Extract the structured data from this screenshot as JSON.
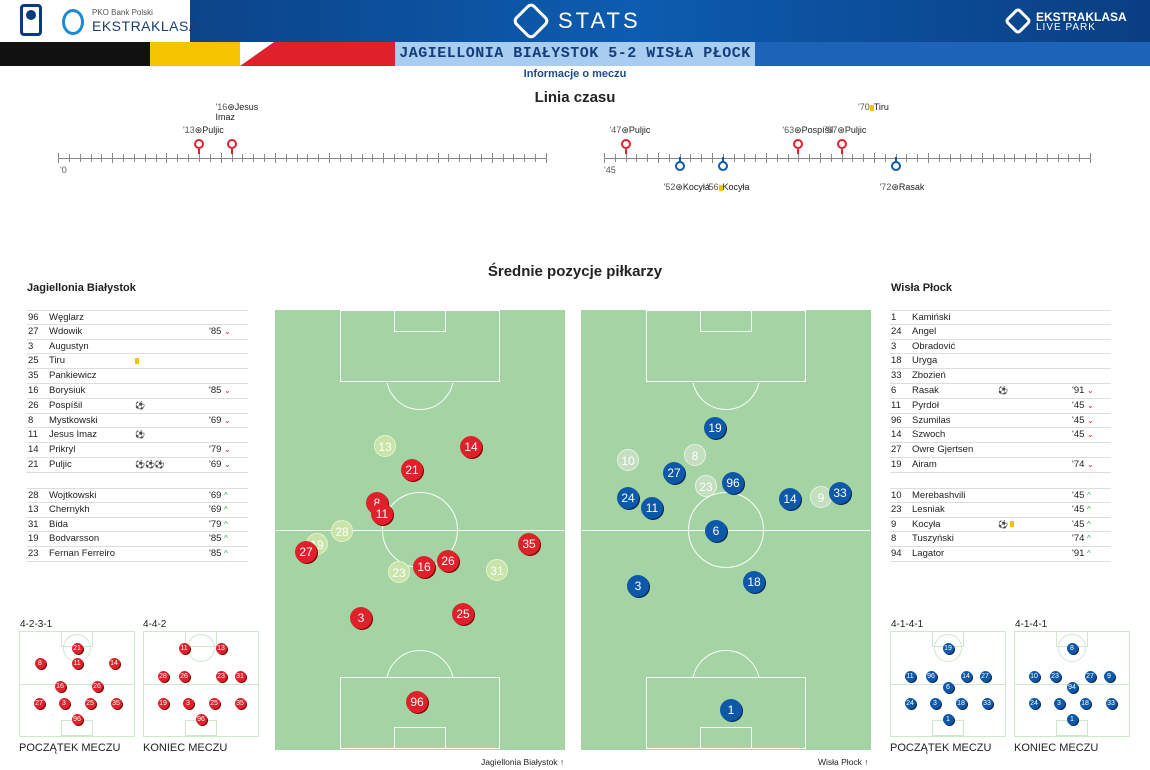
{
  "header": {
    "bank_small": "PKO Bank Polski",
    "brand": "EKSTRAKLASA",
    "stats": "STATS",
    "live1": "EKSTRAKLASA",
    "live2": "LIVE PARK"
  },
  "match": {
    "title": "JAGIELLONIA BIAŁYSTOK 5-2 WISŁA PŁOCK",
    "info": "Informacje o meczu"
  },
  "timeline": {
    "title": "Linia czasu",
    "start1": "'0",
    "start2": "'45",
    "events": [
      {
        "minute": "'13",
        "name": "Puljic",
        "team": "home",
        "type": "goal"
      },
      {
        "minute": "'16",
        "name": "Jesus Imaz",
        "team": "home",
        "type": "goal"
      },
      {
        "minute": "'47",
        "name": "Puljic",
        "team": "home",
        "type": "goal"
      },
      {
        "minute": "'52",
        "name": "Kocyła",
        "team": "away",
        "type": "goal"
      },
      {
        "minute": "'56",
        "name": "Kocyła",
        "team": "away",
        "type": "yellow"
      },
      {
        "minute": "'63",
        "name": "Pospíšil",
        "team": "home",
        "type": "goal"
      },
      {
        "minute": "'67",
        "name": "Puljic",
        "team": "home",
        "type": "goal"
      },
      {
        "minute": "'70",
        "name": "Tiru",
        "team": "home",
        "type": "yellow"
      },
      {
        "minute": "'72",
        "name": "Rasak",
        "team": "away",
        "type": "goal"
      }
    ]
  },
  "positions_title": "Średnie pozycje piłkarzy",
  "home": {
    "name": "Jagiellonia Białystok",
    "color": "#e0202a",
    "starters": [
      {
        "no": "96",
        "name": "Węglarz",
        "ev": "",
        "time": "",
        "dir": ""
      },
      {
        "no": "27",
        "name": "Wdowik",
        "ev": "",
        "time": "'85",
        "dir": "down"
      },
      {
        "no": "3",
        "name": "Augustyn",
        "ev": "",
        "time": "",
        "dir": ""
      },
      {
        "no": "25",
        "name": "Tiru",
        "ev": "yellow",
        "time": "",
        "dir": ""
      },
      {
        "no": "35",
        "name": "Pankiewicz",
        "ev": "",
        "time": "",
        "dir": ""
      },
      {
        "no": "16",
        "name": "Borysiuk",
        "ev": "",
        "time": "'85",
        "dir": "down"
      },
      {
        "no": "26",
        "name": "Pospíšil",
        "ev": "⚽",
        "time": "",
        "dir": ""
      },
      {
        "no": "8",
        "name": "Mystkowski",
        "ev": "",
        "time": "'69",
        "dir": "down"
      },
      {
        "no": "11",
        "name": "Jesus Imaz",
        "ev": "⚽",
        "time": "",
        "dir": ""
      },
      {
        "no": "14",
        "name": "Prikryl",
        "ev": "",
        "time": "'79",
        "dir": "down"
      },
      {
        "no": "21",
        "name": "Puljic",
        "ev": "⚽⚽⚽",
        "time": "'69",
        "dir": "down"
      }
    ],
    "subs": [
      {
        "no": "28",
        "name": "Wojtkowski",
        "ev": "",
        "time": "'69",
        "dir": "up"
      },
      {
        "no": "13",
        "name": "Chernykh",
        "ev": "",
        "time": "'69",
        "dir": "up"
      },
      {
        "no": "31",
        "name": "Bida",
        "ev": "",
        "time": "'79",
        "dir": "up"
      },
      {
        "no": "19",
        "name": "Bodvarsson",
        "ev": "",
        "time": "'85",
        "dir": "up"
      },
      {
        "no": "23",
        "name": "Fernan Ferreiro",
        "ev": "",
        "time": "'85",
        "dir": "up"
      }
    ],
    "formation_start": "4-2-3-1",
    "formation_end": "4-4-2",
    "cap_start": "POCZĄTEK MECZU",
    "cap_end": "KONIEC MECZU"
  },
  "away": {
    "name": "Wisła Płock",
    "color": "#0d58a8",
    "starters": [
      {
        "no": "1",
        "name": "Kamiński",
        "ev": "",
        "time": "",
        "dir": ""
      },
      {
        "no": "24",
        "name": "Angel",
        "ev": "",
        "time": "",
        "dir": ""
      },
      {
        "no": "3",
        "name": "Obradović",
        "ev": "",
        "time": "",
        "dir": ""
      },
      {
        "no": "18",
        "name": "Uryga",
        "ev": "",
        "time": "",
        "dir": ""
      },
      {
        "no": "33",
        "name": "Zbozień",
        "ev": "",
        "time": "",
        "dir": ""
      },
      {
        "no": "6",
        "name": "Rasak",
        "ev": "⚽",
        "time": "'91",
        "dir": "down"
      },
      {
        "no": "11",
        "name": "Pyrdoł",
        "ev": "",
        "time": "'45",
        "dir": "down"
      },
      {
        "no": "96",
        "name": "Szumilas",
        "ev": "",
        "time": "'45",
        "dir": "down"
      },
      {
        "no": "14",
        "name": "Szwoch",
        "ev": "",
        "time": "'45",
        "dir": "down"
      },
      {
        "no": "27",
        "name": "Owre Gjertsen",
        "ev": "",
        "time": "",
        "dir": ""
      },
      {
        "no": "19",
        "name": "Airam",
        "ev": "",
        "time": "'74",
        "dir": "down"
      }
    ],
    "subs": [
      {
        "no": "10",
        "name": "Merebashvili",
        "ev": "",
        "time": "'45",
        "dir": "up"
      },
      {
        "no": "23",
        "name": "Lesniak",
        "ev": "",
        "time": "'45",
        "dir": "up"
      },
      {
        "no": "9",
        "name": "Kocyła",
        "ev": "⚽ yellow",
        "time": "'45",
        "dir": "up"
      },
      {
        "no": "8",
        "name": "Tuszyński",
        "ev": "",
        "time": "'74",
        "dir": "up"
      },
      {
        "no": "94",
        "name": "Lagator",
        "ev": "",
        "time": "'91",
        "dir": "up"
      }
    ],
    "formation_start": "4-1-4-1",
    "formation_end": "4-1-4-1",
    "cap_start": "POCZĄTEK MECZU",
    "cap_end": "KONIEC MECZU"
  },
  "home_positions": [
    {
      "no": "13",
      "sub": true
    },
    {
      "no": "14"
    },
    {
      "no": "21"
    },
    {
      "no": "8"
    },
    {
      "no": "11"
    },
    {
      "no": "28",
      "sub": true
    },
    {
      "no": "19",
      "sub": true
    },
    {
      "no": "27"
    },
    {
      "no": "35"
    },
    {
      "no": "26"
    },
    {
      "no": "16"
    },
    {
      "no": "23",
      "sub": true
    },
    {
      "no": "31",
      "sub": true
    },
    {
      "no": "3"
    },
    {
      "no": "25"
    },
    {
      "no": "96"
    }
  ],
  "away_positions": [
    {
      "no": "19"
    },
    {
      "no": "10",
      "sub": true
    },
    {
      "no": "8",
      "sub": true
    },
    {
      "no": "27"
    },
    {
      "no": "23",
      "sub": true
    },
    {
      "no": "96"
    },
    {
      "no": "24"
    },
    {
      "no": "11"
    },
    {
      "no": "14"
    },
    {
      "no": "9",
      "sub": true
    },
    {
      "no": "33"
    },
    {
      "no": "6"
    },
    {
      "no": "3"
    },
    {
      "no": "18"
    },
    {
      "no": "1"
    }
  ],
  "home_mini_start": [
    "21",
    "8",
    "11",
    "14",
    "16",
    "26",
    "27",
    "3",
    "25",
    "35",
    "96"
  ],
  "home_mini_end": [
    "11",
    "13",
    "28",
    "26",
    "23",
    "31",
    "19",
    "3",
    "25",
    "35",
    "96"
  ],
  "away_mini_start": [
    "19",
    "11",
    "96",
    "14",
    "27",
    "6",
    "24",
    "3",
    "18",
    "33",
    "1"
  ],
  "away_mini_end": [
    "8",
    "10",
    "23",
    "27",
    "9",
    "94",
    "24",
    "3",
    "18",
    "33",
    "1"
  ],
  "footer": {
    "home": "Jagiellonia Białystok",
    "away": "Wisła Płock"
  }
}
